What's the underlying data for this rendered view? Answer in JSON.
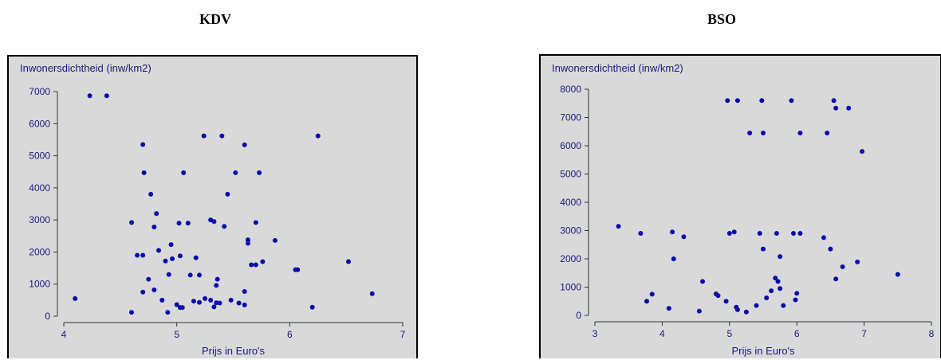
{
  "chart_data": [
    {
      "type": "scatter",
      "title": "KDV",
      "ylabel": "Inwonersdichtheid (inw/km2)",
      "xlabel": "Prijs in Euro's",
      "xlim": [
        4,
        7
      ],
      "ylim": [
        0,
        7000
      ],
      "xticks": [
        "4",
        "5",
        "6",
        "7"
      ],
      "yticks": [
        "0",
        "1000",
        "2000",
        "3000",
        "4000",
        "5000",
        "6000",
        "7000"
      ],
      "marker_color": "#0b0bab",
      "points": [
        [
          4.1,
          550
        ],
        [
          4.23,
          6870
        ],
        [
          4.38,
          6870
        ],
        [
          4.6,
          2920
        ],
        [
          4.6,
          120
        ],
        [
          4.65,
          1900
        ],
        [
          4.7,
          1900
        ],
        [
          4.7,
          5350
        ],
        [
          4.71,
          4470
        ],
        [
          4.7,
          750
        ],
        [
          4.75,
          1150
        ],
        [
          4.77,
          3800
        ],
        [
          4.8,
          2780
        ],
        [
          4.8,
          820
        ],
        [
          4.82,
          3200
        ],
        [
          4.84,
          2050
        ],
        [
          4.87,
          500
        ],
        [
          4.9,
          1720
        ],
        [
          4.92,
          120
        ],
        [
          4.93,
          1300
        ],
        [
          4.95,
          2230
        ],
        [
          4.96,
          1790
        ],
        [
          5.0,
          360
        ],
        [
          5.02,
          2900
        ],
        [
          5.03,
          1880
        ],
        [
          5.03,
          270
        ],
        [
          5.05,
          270
        ],
        [
          5.06,
          4470
        ],
        [
          5.1,
          2900
        ],
        [
          5.12,
          1280
        ],
        [
          5.15,
          470
        ],
        [
          5.17,
          1820
        ],
        [
          5.2,
          430
        ],
        [
          5.2,
          1280
        ],
        [
          5.24,
          5620
        ],
        [
          5.25,
          550
        ],
        [
          5.3,
          3000
        ],
        [
          5.3,
          500
        ],
        [
          5.33,
          2950
        ],
        [
          5.33,
          290
        ],
        [
          5.35,
          960
        ],
        [
          5.35,
          420
        ],
        [
          5.36,
          1150
        ],
        [
          5.38,
          410
        ],
        [
          5.4,
          5620
        ],
        [
          5.42,
          2800
        ],
        [
          5.45,
          3800
        ],
        [
          5.48,
          500
        ],
        [
          5.52,
          4470
        ],
        [
          5.55,
          410
        ],
        [
          5.6,
          5340
        ],
        [
          5.6,
          350
        ],
        [
          5.6,
          770
        ],
        [
          5.63,
          2380
        ],
        [
          5.63,
          2270
        ],
        [
          5.66,
          1600
        ],
        [
          5.7,
          2920
        ],
        [
          5.7,
          1600
        ],
        [
          5.73,
          4470
        ],
        [
          5.76,
          1700
        ],
        [
          5.87,
          2360
        ],
        [
          6.05,
          1450
        ],
        [
          6.07,
          1450
        ],
        [
          6.2,
          280
        ],
        [
          6.25,
          5620
        ],
        [
          6.52,
          1700
        ],
        [
          6.73,
          700
        ]
      ]
    },
    {
      "type": "scatter",
      "title": "BSO",
      "ylabel": "Inwonersdichtheid (inw/km2)",
      "xlabel": "Prijs in Euro's",
      "xlim": [
        3,
        8
      ],
      "ylim": [
        0,
        8000
      ],
      "xticks": [
        "3",
        "4",
        "5",
        "6",
        "7",
        "8"
      ],
      "yticks": [
        "0",
        "1000",
        "2000",
        "3000",
        "4000",
        "5000",
        "6000",
        "7000",
        "8000"
      ],
      "marker_color": "#0b0bab",
      "points": [
        [
          3.35,
          3150
        ],
        [
          3.68,
          2900
        ],
        [
          3.77,
          500
        ],
        [
          3.85,
          750
        ],
        [
          4.1,
          250
        ],
        [
          4.15,
          2950
        ],
        [
          4.17,
          2000
        ],
        [
          4.32,
          2780
        ],
        [
          4.55,
          150
        ],
        [
          4.6,
          1200
        ],
        [
          4.8,
          760
        ],
        [
          4.83,
          700
        ],
        [
          4.95,
          500
        ],
        [
          4.97,
          7600
        ],
        [
          5.0,
          2900
        ],
        [
          5.07,
          2950
        ],
        [
          5.1,
          290
        ],
        [
          5.12,
          200
        ],
        [
          5.12,
          7600
        ],
        [
          5.25,
          120
        ],
        [
          5.3,
          6450
        ],
        [
          5.4,
          350
        ],
        [
          5.45,
          2900
        ],
        [
          5.48,
          7600
        ],
        [
          5.5,
          6450
        ],
        [
          5.5,
          2350
        ],
        [
          5.55,
          620
        ],
        [
          5.62,
          870
        ],
        [
          5.68,
          1320
        ],
        [
          5.7,
          2900
        ],
        [
          5.72,
          1200
        ],
        [
          5.75,
          950
        ],
        [
          5.75,
          2080
        ],
        [
          5.8,
          350
        ],
        [
          5.92,
          7600
        ],
        [
          5.95,
          2900
        ],
        [
          5.98,
          550
        ],
        [
          6.0,
          780
        ],
        [
          6.05,
          2900
        ],
        [
          6.05,
          6450
        ],
        [
          6.4,
          2750
        ],
        [
          6.45,
          6450
        ],
        [
          6.5,
          2350
        ],
        [
          6.55,
          7600
        ],
        [
          6.58,
          7330
        ],
        [
          6.58,
          1290
        ],
        [
          6.68,
          1720
        ],
        [
          6.77,
          7330
        ],
        [
          6.9,
          1890
        ],
        [
          6.97,
          5800
        ],
        [
          7.5,
          1450
        ]
      ]
    }
  ]
}
